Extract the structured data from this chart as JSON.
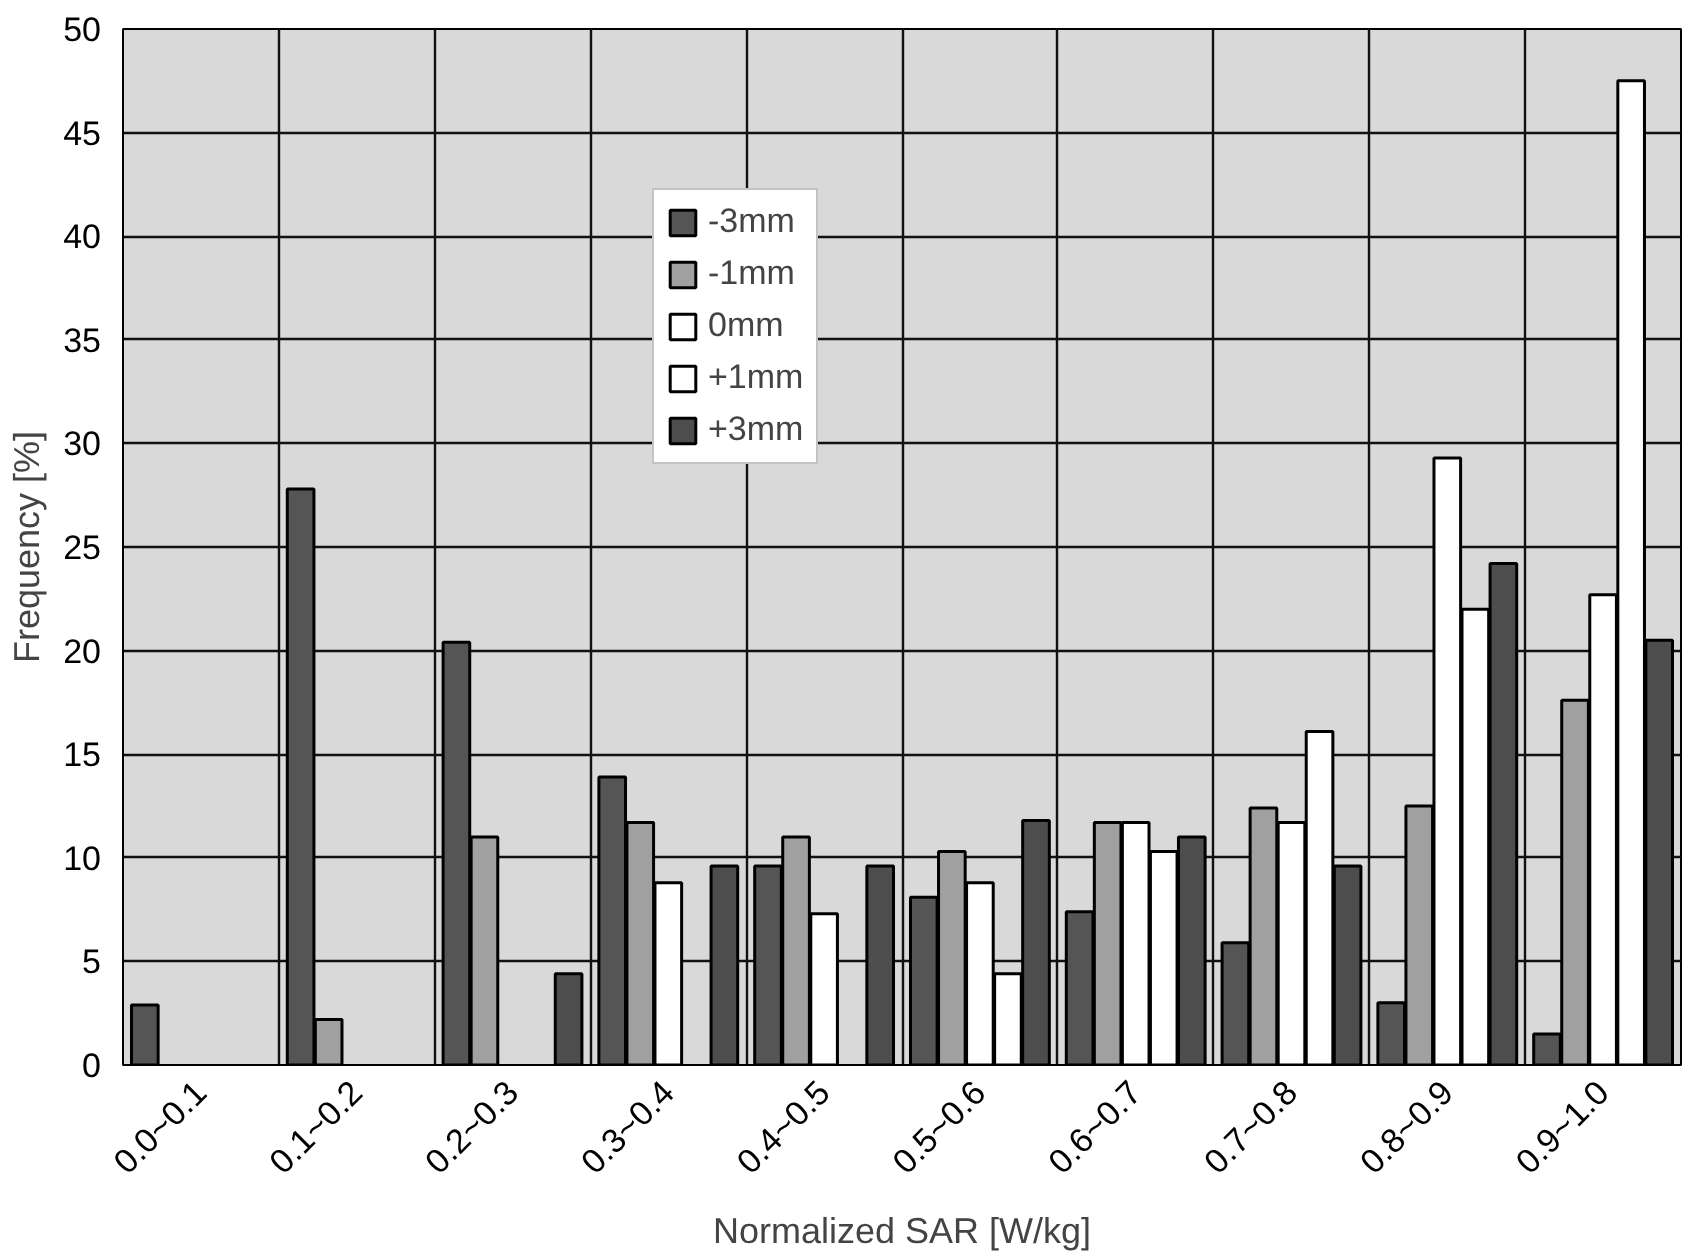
{
  "chart_data": {
    "type": "bar",
    "xlabel": "Normalized SAR [W/kg]",
    "ylabel": "Frequency [%]",
    "categories": [
      "0.0~0.1",
      "0.1~0.2",
      "0.2~0.3",
      "0.3~0.4",
      "0.4~0.5",
      "0.5~0.6",
      "0.6~0.7",
      "0.7~0.8",
      "0.8~0.9",
      "0.9~1.0"
    ],
    "series": [
      {
        "name": "-3mm",
        "color": "#555555",
        "values": [
          2.9,
          27.8,
          20.4,
          13.9,
          9.6,
          8.1,
          7.4,
          5.9,
          3.0,
          1.5
        ]
      },
      {
        "name": "-1mm",
        "color": "#a0a0a0",
        "values": [
          0,
          2.2,
          11.0,
          11.7,
          11.0,
          10.3,
          11.7,
          12.4,
          12.5,
          17.6
        ]
      },
      {
        "name": "0mm",
        "color": "#ffffff",
        "values": [
          0,
          0,
          0,
          8.8,
          7.3,
          8.8,
          11.7,
          11.7,
          29.3,
          22.7
        ]
      },
      {
        "name": "+1mm",
        "color": "#fefefe",
        "values": [
          0,
          0,
          0,
          0,
          0,
          4.4,
          10.3,
          16.1,
          22.0,
          47.5
        ]
      },
      {
        "name": "+3mm",
        "color": "#4d4d4d",
        "values": [
          0,
          0,
          4.4,
          9.6,
          9.6,
          11.8,
          11.0,
          9.6,
          24.2,
          20.5
        ]
      }
    ],
    "ylim": [
      0,
      50
    ],
    "yticks": [
      0,
      5,
      10,
      15,
      20,
      25,
      30,
      35,
      40,
      45,
      50
    ],
    "grid": true,
    "legend": "top"
  }
}
